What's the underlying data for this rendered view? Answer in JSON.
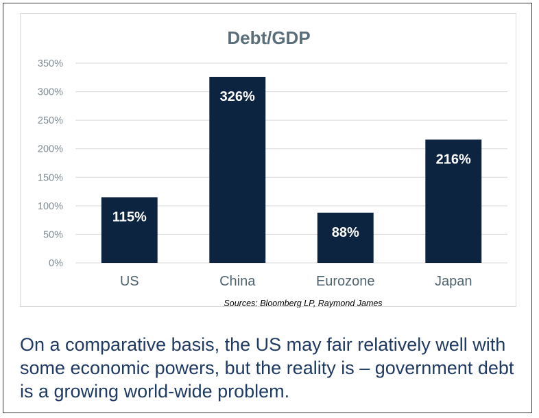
{
  "chart_data": {
    "type": "bar",
    "title": "Debt/GDP",
    "categories": [
      "US",
      "China",
      "Eurozone",
      "Japan"
    ],
    "values": [
      115,
      326,
      88,
      216
    ],
    "data_labels": [
      "115%",
      "326%",
      "88%",
      "216%"
    ],
    "ylim": [
      0,
      350
    ],
    "yticks": [
      "0%",
      "50%",
      "100%",
      "150%",
      "200%",
      "250%",
      "300%",
      "350%"
    ],
    "grid": true,
    "source": "Sources: Bloomberg LP, Raymond James",
    "colors": {
      "bar": "#0d2440",
      "title": "#5a6e7a",
      "tick": "#7f8c93",
      "category": "#4f6470",
      "grid": "#d9d9d9"
    }
  },
  "caption": "On a comparative basis, the US may fair relatively well with some economic powers, but the reality is – government debt is a growing world-wide problem."
}
